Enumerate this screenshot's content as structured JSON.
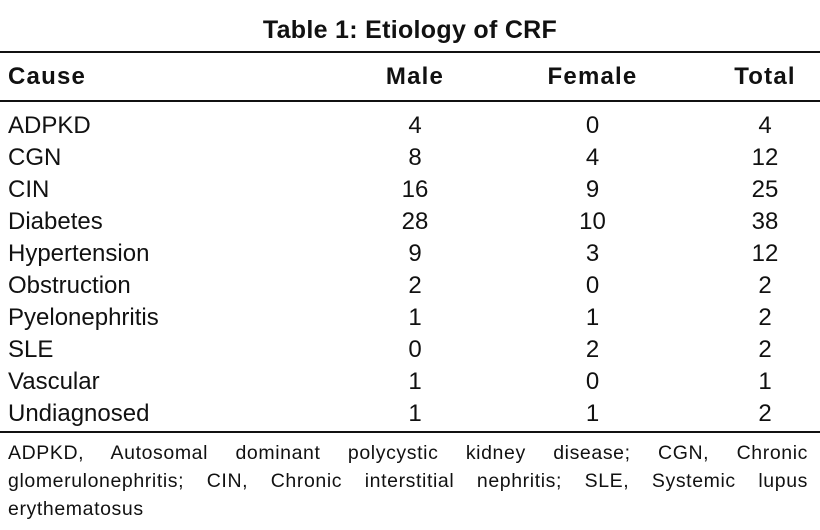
{
  "table": {
    "title": "Table 1: Etiology of CRF",
    "headers": {
      "cause": "Cause",
      "male": "Male",
      "female": "Female",
      "total": "Total"
    },
    "rows": [
      {
        "cause": "ADPKD",
        "male": "4",
        "female": "0",
        "total": "4"
      },
      {
        "cause": "CGN",
        "male": "8",
        "female": "4",
        "total": "12"
      },
      {
        "cause": "CIN",
        "male": "16",
        "female": "9",
        "total": "25"
      },
      {
        "cause": "Diabetes",
        "male": "28",
        "female": "10",
        "total": "38"
      },
      {
        "cause": "Hypertension",
        "male": "9",
        "female": "3",
        "total": "12"
      },
      {
        "cause": "Obstruction",
        "male": "2",
        "female": "0",
        "total": "2"
      },
      {
        "cause": "Pyelonephritis",
        "male": "1",
        "female": "1",
        "total": "2"
      },
      {
        "cause": "SLE",
        "male": "0",
        "female": "2",
        "total": "2"
      },
      {
        "cause": "Vascular",
        "male": "1",
        "female": "0",
        "total": "1"
      },
      {
        "cause": "Undiagnosed",
        "male": "1",
        "female": "1",
        "total": "2"
      }
    ],
    "footnote": "ADPKD, Autosomal dominant polycystic kidney disease; CGN, Chronic glomerulonephritis; CIN, Chronic interstitial nephritis; SLE, Systemic lupus erythematosus"
  }
}
